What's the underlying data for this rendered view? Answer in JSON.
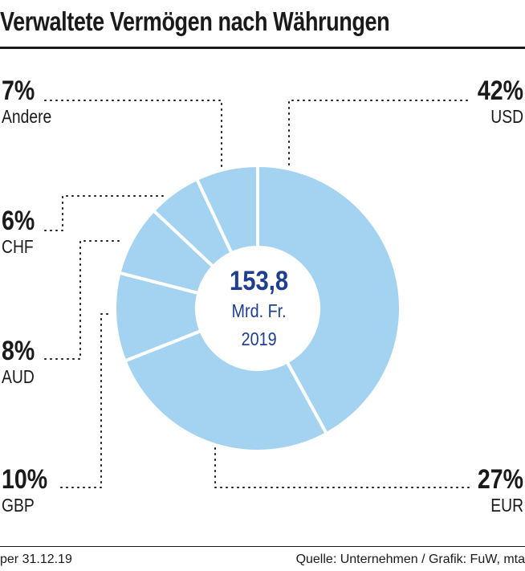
{
  "header": {
    "title": "Verwaltete Vermögen nach Währungen"
  },
  "chart_data": {
    "type": "pie",
    "title": "Verwaltete Vermögen nach Währungen",
    "unit": "%",
    "slices": [
      {
        "label": "USD",
        "value": 42,
        "display": "42%"
      },
      {
        "label": "EUR",
        "value": 27,
        "display": "27%"
      },
      {
        "label": "GBP",
        "value": 10,
        "display": "10%"
      },
      {
        "label": "AUD",
        "value": 8,
        "display": "8%"
      },
      {
        "label": "CHF",
        "value": 6,
        "display": "6%"
      },
      {
        "label": "Andere",
        "value": 7,
        "display": "7%"
      }
    ],
    "center": {
      "value": "153,8",
      "unit": "Mrd. Fr.",
      "year": "2019"
    }
  },
  "colors": {
    "slice_fill": "#a3d3f0",
    "slice_stroke": "#ffffff",
    "center_text": "#1f3e8f",
    "text": "#1a1a1a"
  },
  "footer": {
    "date": "per 31.12.19",
    "source": "Quelle: Unternehmen / Grafik: FuW, mta"
  }
}
